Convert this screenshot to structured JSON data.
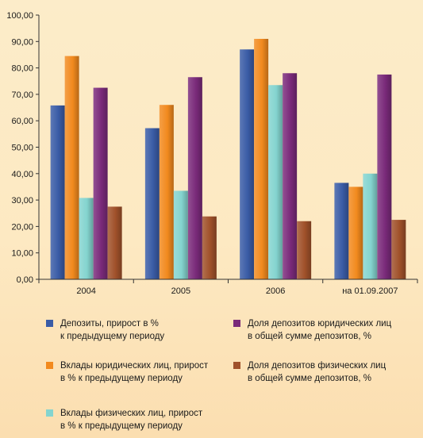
{
  "chart_data": {
    "type": "bar",
    "categories": [
      "2004",
      "2005",
      "2006",
      "на 01.09.2007"
    ],
    "yticks": [
      "0,00",
      "10,00",
      "20,00",
      "30,00",
      "40,00",
      "50,00",
      "60,00",
      "70,00",
      "80,00",
      "90,00",
      "100,00"
    ],
    "ylim": [
      0,
      100
    ],
    "grid": false,
    "legend_position": "bottom",
    "series": [
      {
        "name": "Депозиты, прирост в %\nк предыдущему периоду",
        "color": "#3a5ca6",
        "values": [
          65.8,
          57.2,
          87.0,
          36.5
        ]
      },
      {
        "name": "Вклады юридических лиц, прирост\nв % к предыдущему периоду",
        "color": "#f28a1e",
        "values": [
          84.5,
          66.0,
          91.0,
          35.0
        ]
      },
      {
        "name": "Вклады физических лиц, прирост\nв % к предыдущему периоду",
        "color": "#84d4cf",
        "values": [
          30.8,
          33.5,
          73.5,
          40.0
        ]
      },
      {
        "name": "Доля депозитов юридических лиц\nв общей сумме депозитов, %",
        "color": "#7a2a7a",
        "values": [
          72.5,
          76.5,
          78.0,
          77.5
        ]
      },
      {
        "name": "Доля депозитов физических лиц\nв общей сумме депозитов, %",
        "color": "#a0512a",
        "values": [
          27.5,
          23.8,
          22.0,
          22.5
        ]
      }
    ]
  }
}
